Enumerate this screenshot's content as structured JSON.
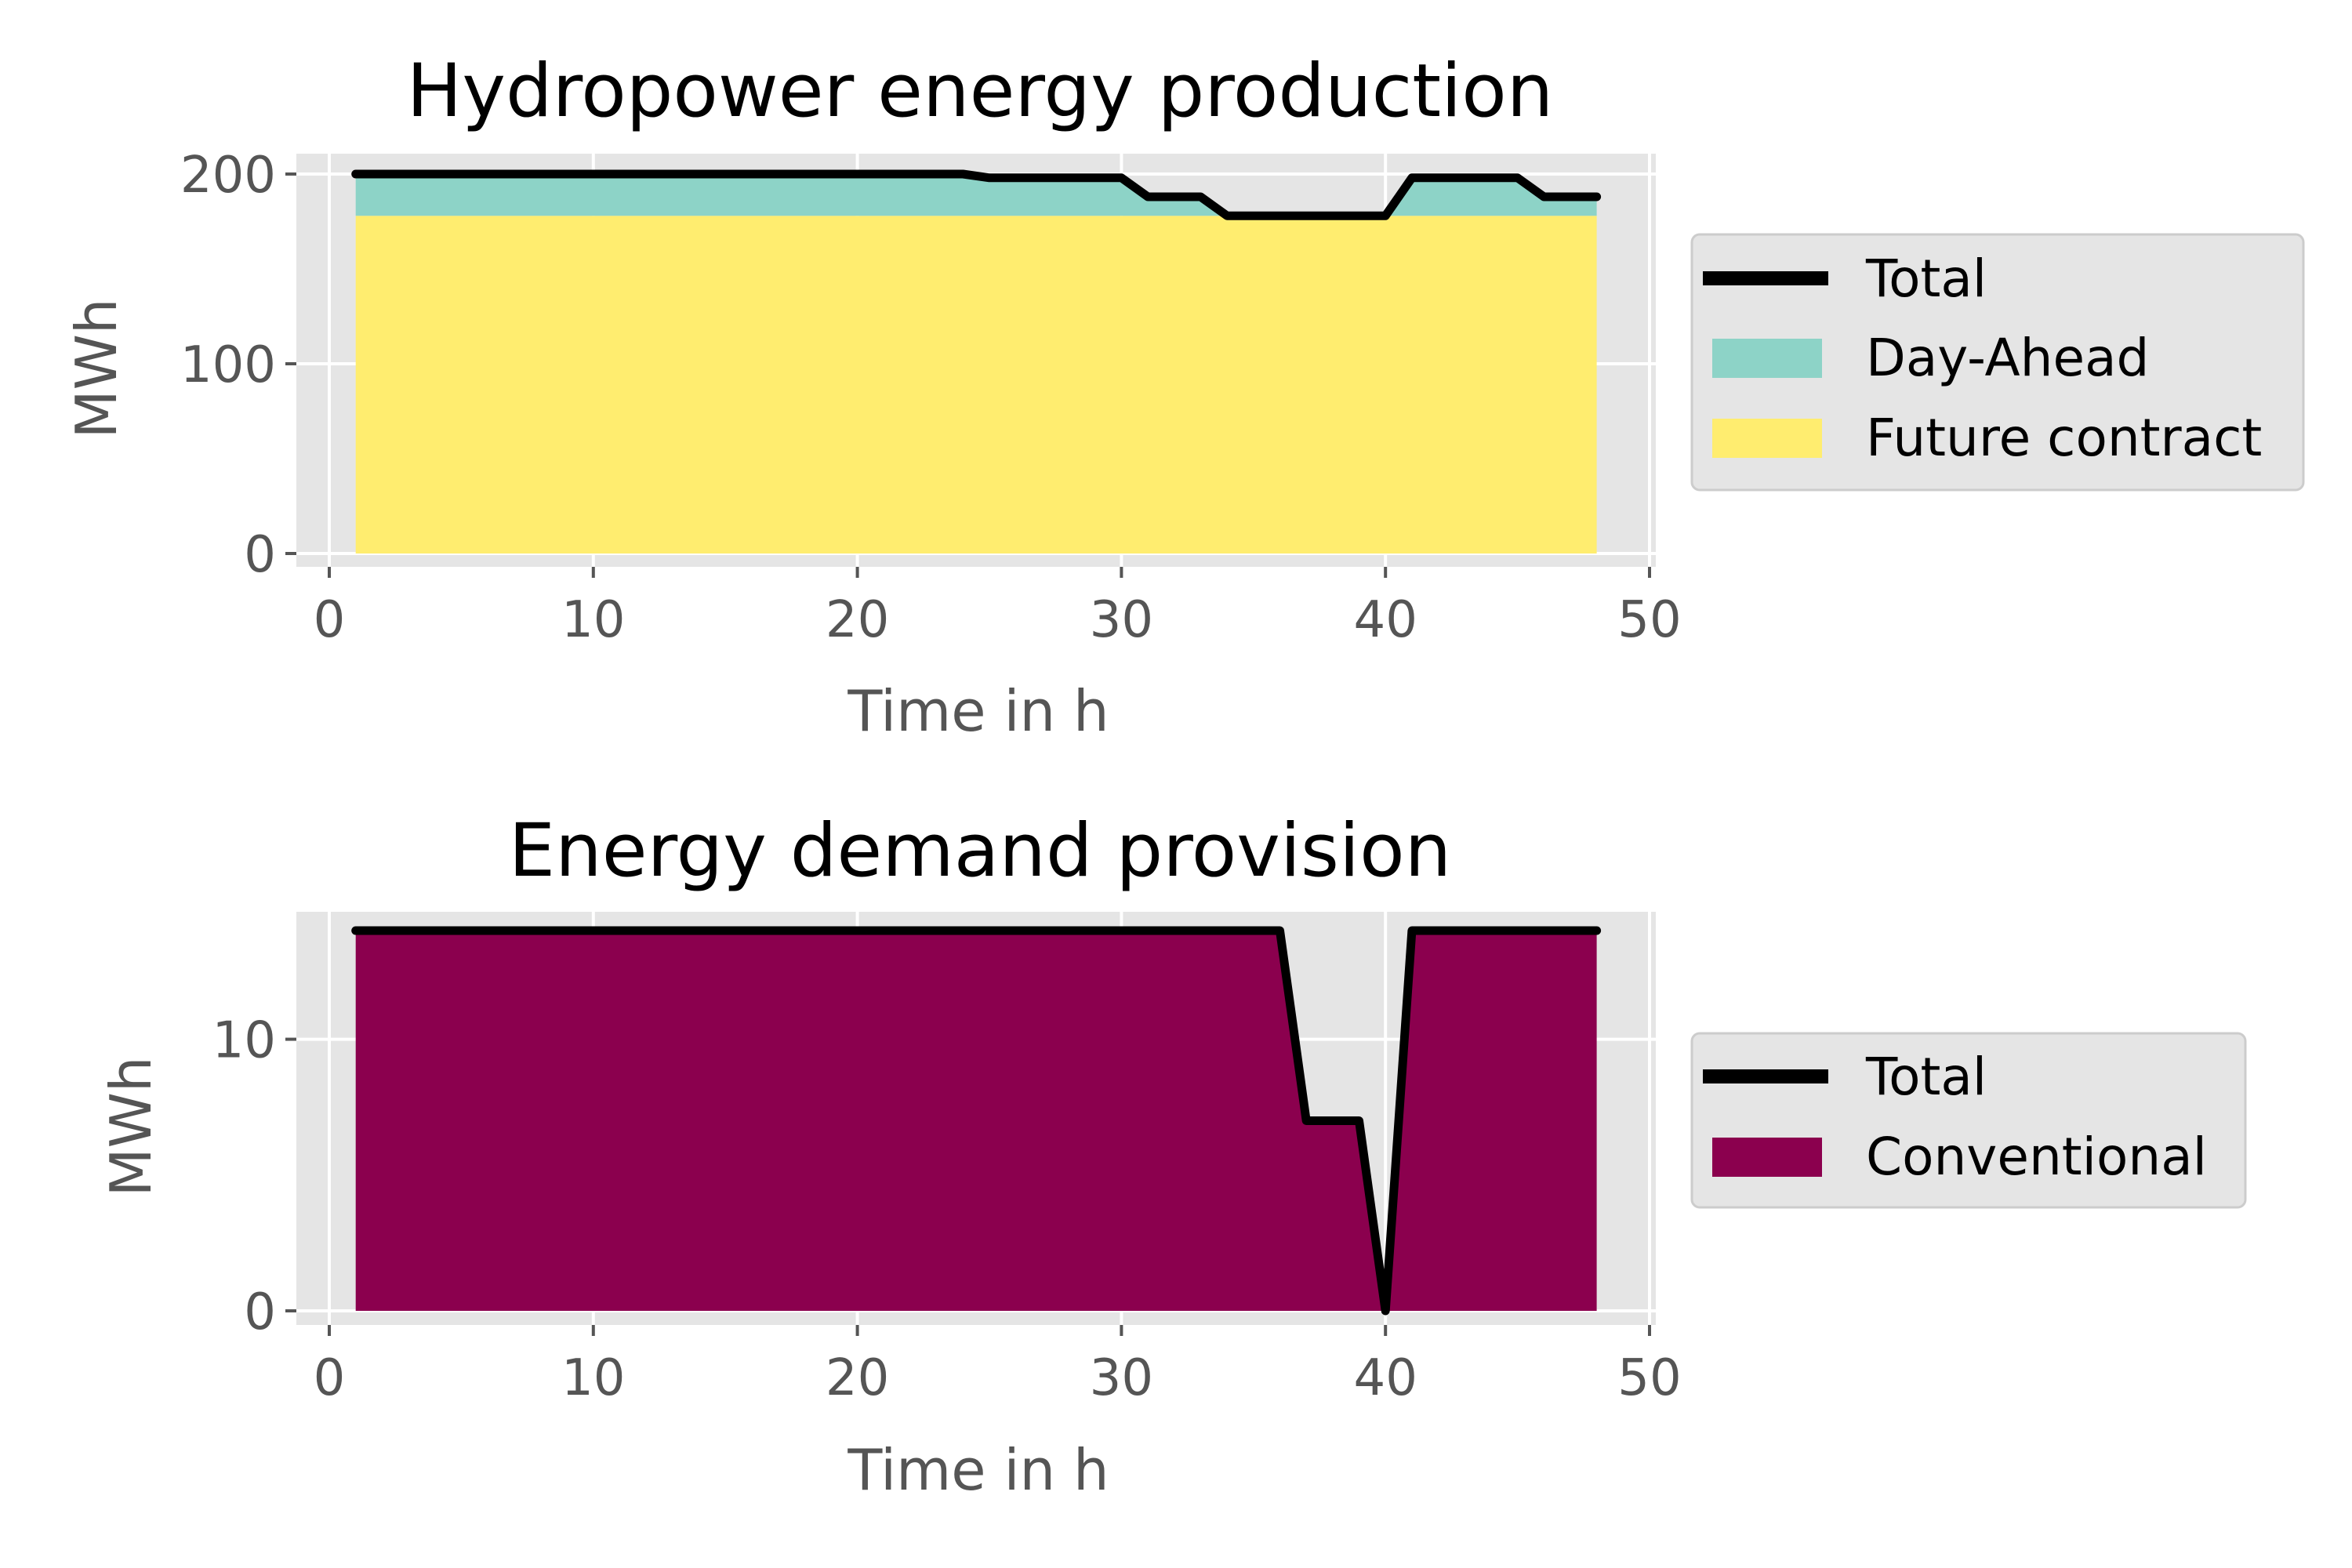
{
  "colors": {
    "axes_background": "#e5e5e5",
    "grid": "#ffffff",
    "total_line": "#000000",
    "day_ahead": "#8dd3c7",
    "future_contract": "#ffed6f",
    "conventional": "#8b004e",
    "legend_background": "#e5e5e5",
    "legend_border": "#cccccc",
    "tick_text": "#555555"
  },
  "chart_data": [
    {
      "type": "area",
      "title": "Hydropower energy production",
      "xlabel": "Time in h",
      "ylabel": "MWh",
      "xlim": [
        0,
        50
      ],
      "ylim": [
        0,
        200
      ],
      "xticks": [
        0,
        10,
        20,
        30,
        40,
        50
      ],
      "yticks": [
        0,
        100,
        200
      ],
      "xtick_labels": [
        "0",
        "10",
        "20",
        "30",
        "40",
        "50"
      ],
      "ytick_labels": [
        "0",
        "100",
        "200"
      ],
      "grid": true,
      "legend_position": "right",
      "x": [
        1,
        2,
        3,
        4,
        5,
        6,
        7,
        8,
        9,
        10,
        11,
        12,
        13,
        14,
        15,
        16,
        17,
        18,
        19,
        20,
        21,
        22,
        23,
        24,
        25,
        26,
        27,
        28,
        29,
        30,
        31,
        32,
        33,
        34,
        35,
        36,
        37,
        38,
        39,
        40,
        41,
        42,
        43,
        44,
        45,
        46,
        47,
        48
      ],
      "series": [
        {
          "name": "Future contract",
          "kind": "area",
          "color": "#ffed6f",
          "values": [
            178,
            178,
            178,
            178,
            178,
            178,
            178,
            178,
            178,
            178,
            178,
            178,
            178,
            178,
            178,
            178,
            178,
            178,
            178,
            178,
            178,
            178,
            178,
            178,
            178,
            178,
            178,
            178,
            178,
            178,
            178,
            178,
            178,
            178,
            178,
            178,
            178,
            178,
            178,
            178,
            178,
            178,
            178,
            178,
            178,
            178,
            178,
            178
          ]
        },
        {
          "name": "Day-Ahead",
          "kind": "area",
          "color": "#8dd3c7",
          "values": [
            22,
            22,
            22,
            22,
            22,
            22,
            22,
            22,
            22,
            22,
            22,
            22,
            22,
            22,
            22,
            22,
            22,
            22,
            22,
            22,
            22,
            22,
            22,
            22,
            20,
            20,
            20,
            20,
            20,
            20,
            10,
            10,
            10,
            0,
            0,
            0,
            0,
            0,
            0,
            0,
            20,
            20,
            20,
            20,
            20,
            10,
            10,
            10
          ]
        },
        {
          "name": "Total",
          "kind": "line",
          "color": "#000000",
          "values": [
            200,
            200,
            200,
            200,
            200,
            200,
            200,
            200,
            200,
            200,
            200,
            200,
            200,
            200,
            200,
            200,
            200,
            200,
            200,
            200,
            200,
            200,
            200,
            200,
            198,
            198,
            198,
            198,
            198,
            198,
            188,
            188,
            188,
            178,
            178,
            178,
            178,
            178,
            178,
            178,
            198,
            198,
            198,
            198,
            198,
            188,
            188,
            188
          ]
        }
      ],
      "legend": [
        "Total",
        "Day-Ahead",
        "Future contract"
      ]
    },
    {
      "type": "area",
      "title": "Energy demand provision",
      "xlabel": "Time in h",
      "ylabel": "MWh",
      "xlim": [
        0,
        50
      ],
      "ylim": [
        0,
        14
      ],
      "xticks": [
        0,
        10,
        20,
        30,
        40,
        50
      ],
      "yticks": [
        0,
        10
      ],
      "xtick_labels": [
        "0",
        "10",
        "20",
        "30",
        "40",
        "50"
      ],
      "ytick_labels": [
        "0",
        "10"
      ],
      "grid": true,
      "legend_position": "right",
      "x": [
        1,
        2,
        3,
        4,
        5,
        6,
        7,
        8,
        9,
        10,
        11,
        12,
        13,
        14,
        15,
        16,
        17,
        18,
        19,
        20,
        21,
        22,
        23,
        24,
        25,
        26,
        27,
        28,
        29,
        30,
        31,
        32,
        33,
        34,
        35,
        36,
        37,
        38,
        39,
        40,
        41,
        42,
        43,
        44,
        45,
        46,
        47,
        48
      ],
      "series": [
        {
          "name": "Conventional",
          "kind": "area",
          "color": "#8b004e",
          "values": [
            14,
            14,
            14,
            14,
            14,
            14,
            14,
            14,
            14,
            14,
            14,
            14,
            14,
            14,
            14,
            14,
            14,
            14,
            14,
            14,
            14,
            14,
            14,
            14,
            14,
            14,
            14,
            14,
            14,
            14,
            14,
            14,
            14,
            14,
            14,
            14,
            7,
            7,
            7,
            0,
            14,
            14,
            14,
            14,
            14,
            14,
            14,
            14
          ]
        },
        {
          "name": "Total",
          "kind": "line",
          "color": "#000000",
          "values": [
            14,
            14,
            14,
            14,
            14,
            14,
            14,
            14,
            14,
            14,
            14,
            14,
            14,
            14,
            14,
            14,
            14,
            14,
            14,
            14,
            14,
            14,
            14,
            14,
            14,
            14,
            14,
            14,
            14,
            14,
            14,
            14,
            14,
            14,
            14,
            14,
            7,
            7,
            7,
            0,
            14,
            14,
            14,
            14,
            14,
            14,
            14,
            14
          ]
        }
      ],
      "legend": [
        "Total",
        "Conventional"
      ]
    }
  ]
}
